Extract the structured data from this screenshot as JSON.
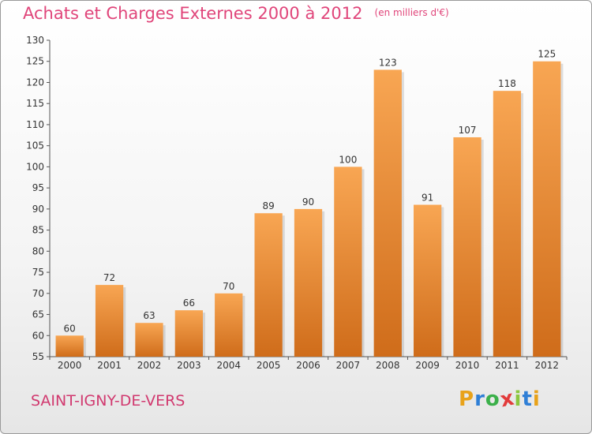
{
  "chart_data": {
    "type": "bar",
    "title": "Achats et Charges Externes 2000 à 2012",
    "unit": "(en milliers d'€)",
    "categories": [
      "2000",
      "2001",
      "2002",
      "2003",
      "2004",
      "2005",
      "2006",
      "2007",
      "2008",
      "2009",
      "2010",
      "2011",
      "2012"
    ],
    "values": [
      60,
      72,
      63,
      66,
      70,
      89,
      90,
      100,
      123,
      91,
      107,
      118,
      125
    ],
    "ylim": [
      55,
      130
    ],
    "yticks": [
      55,
      60,
      65,
      70,
      75,
      80,
      85,
      90,
      95,
      100,
      105,
      110,
      115,
      120,
      125,
      130
    ],
    "grid": false,
    "bar_color_top": "#f8a653",
    "bar_color_bottom": "#cf6c1a"
  },
  "commune": "SAINT-IGNY-DE-VERS",
  "logo": {
    "letters": [
      "P",
      "r",
      "o",
      "x",
      "i",
      "t",
      "i"
    ],
    "colors": [
      "#e8a21a",
      "#2f7fd6",
      "#3bb04a",
      "#e23b3b",
      "#8cc63f",
      "#2f7fd6",
      "#e8a21a"
    ]
  }
}
